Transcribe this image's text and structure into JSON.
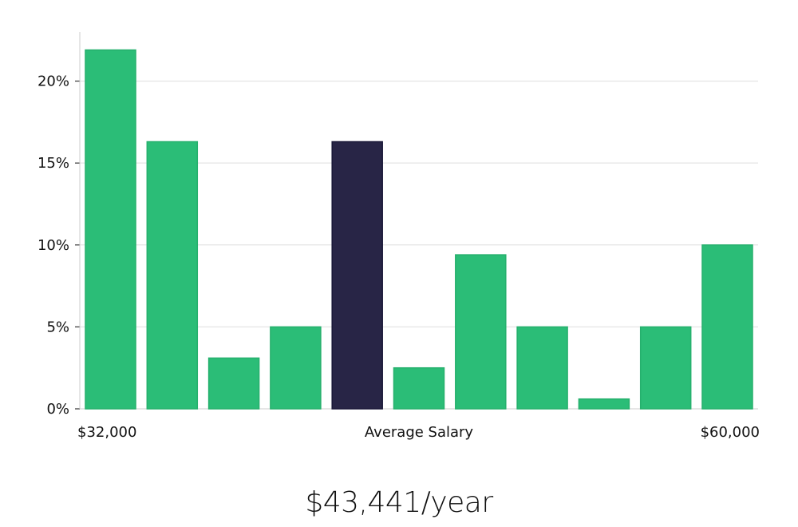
{
  "chart_data": {
    "type": "bar",
    "categories": [
      "1",
      "2",
      "3",
      "4",
      "5",
      "6",
      "7",
      "8",
      "9",
      "10",
      "11"
    ],
    "values": [
      21.9,
      16.3,
      3.1,
      5.0,
      16.3,
      2.5,
      9.4,
      5.0,
      0.6,
      5.0,
      10.0
    ],
    "highlight_index": 4,
    "ylim": [
      0,
      23
    ],
    "yticks": [
      0,
      5,
      10,
      15,
      20
    ],
    "ytick_suffix": "%",
    "x_min_label": "$32,000",
    "x_center_label": "Average Salary",
    "x_max_label": "$60,000",
    "grid": true,
    "colors": {
      "bar": "#2bbd77",
      "bar_border": "#26b06d",
      "highlight": "#282546",
      "highlight_border": "#1a1838",
      "grid": "#dddddd",
      "axis": "#cccccc"
    }
  },
  "summary": {
    "salary_text": "$43,441/year"
  }
}
